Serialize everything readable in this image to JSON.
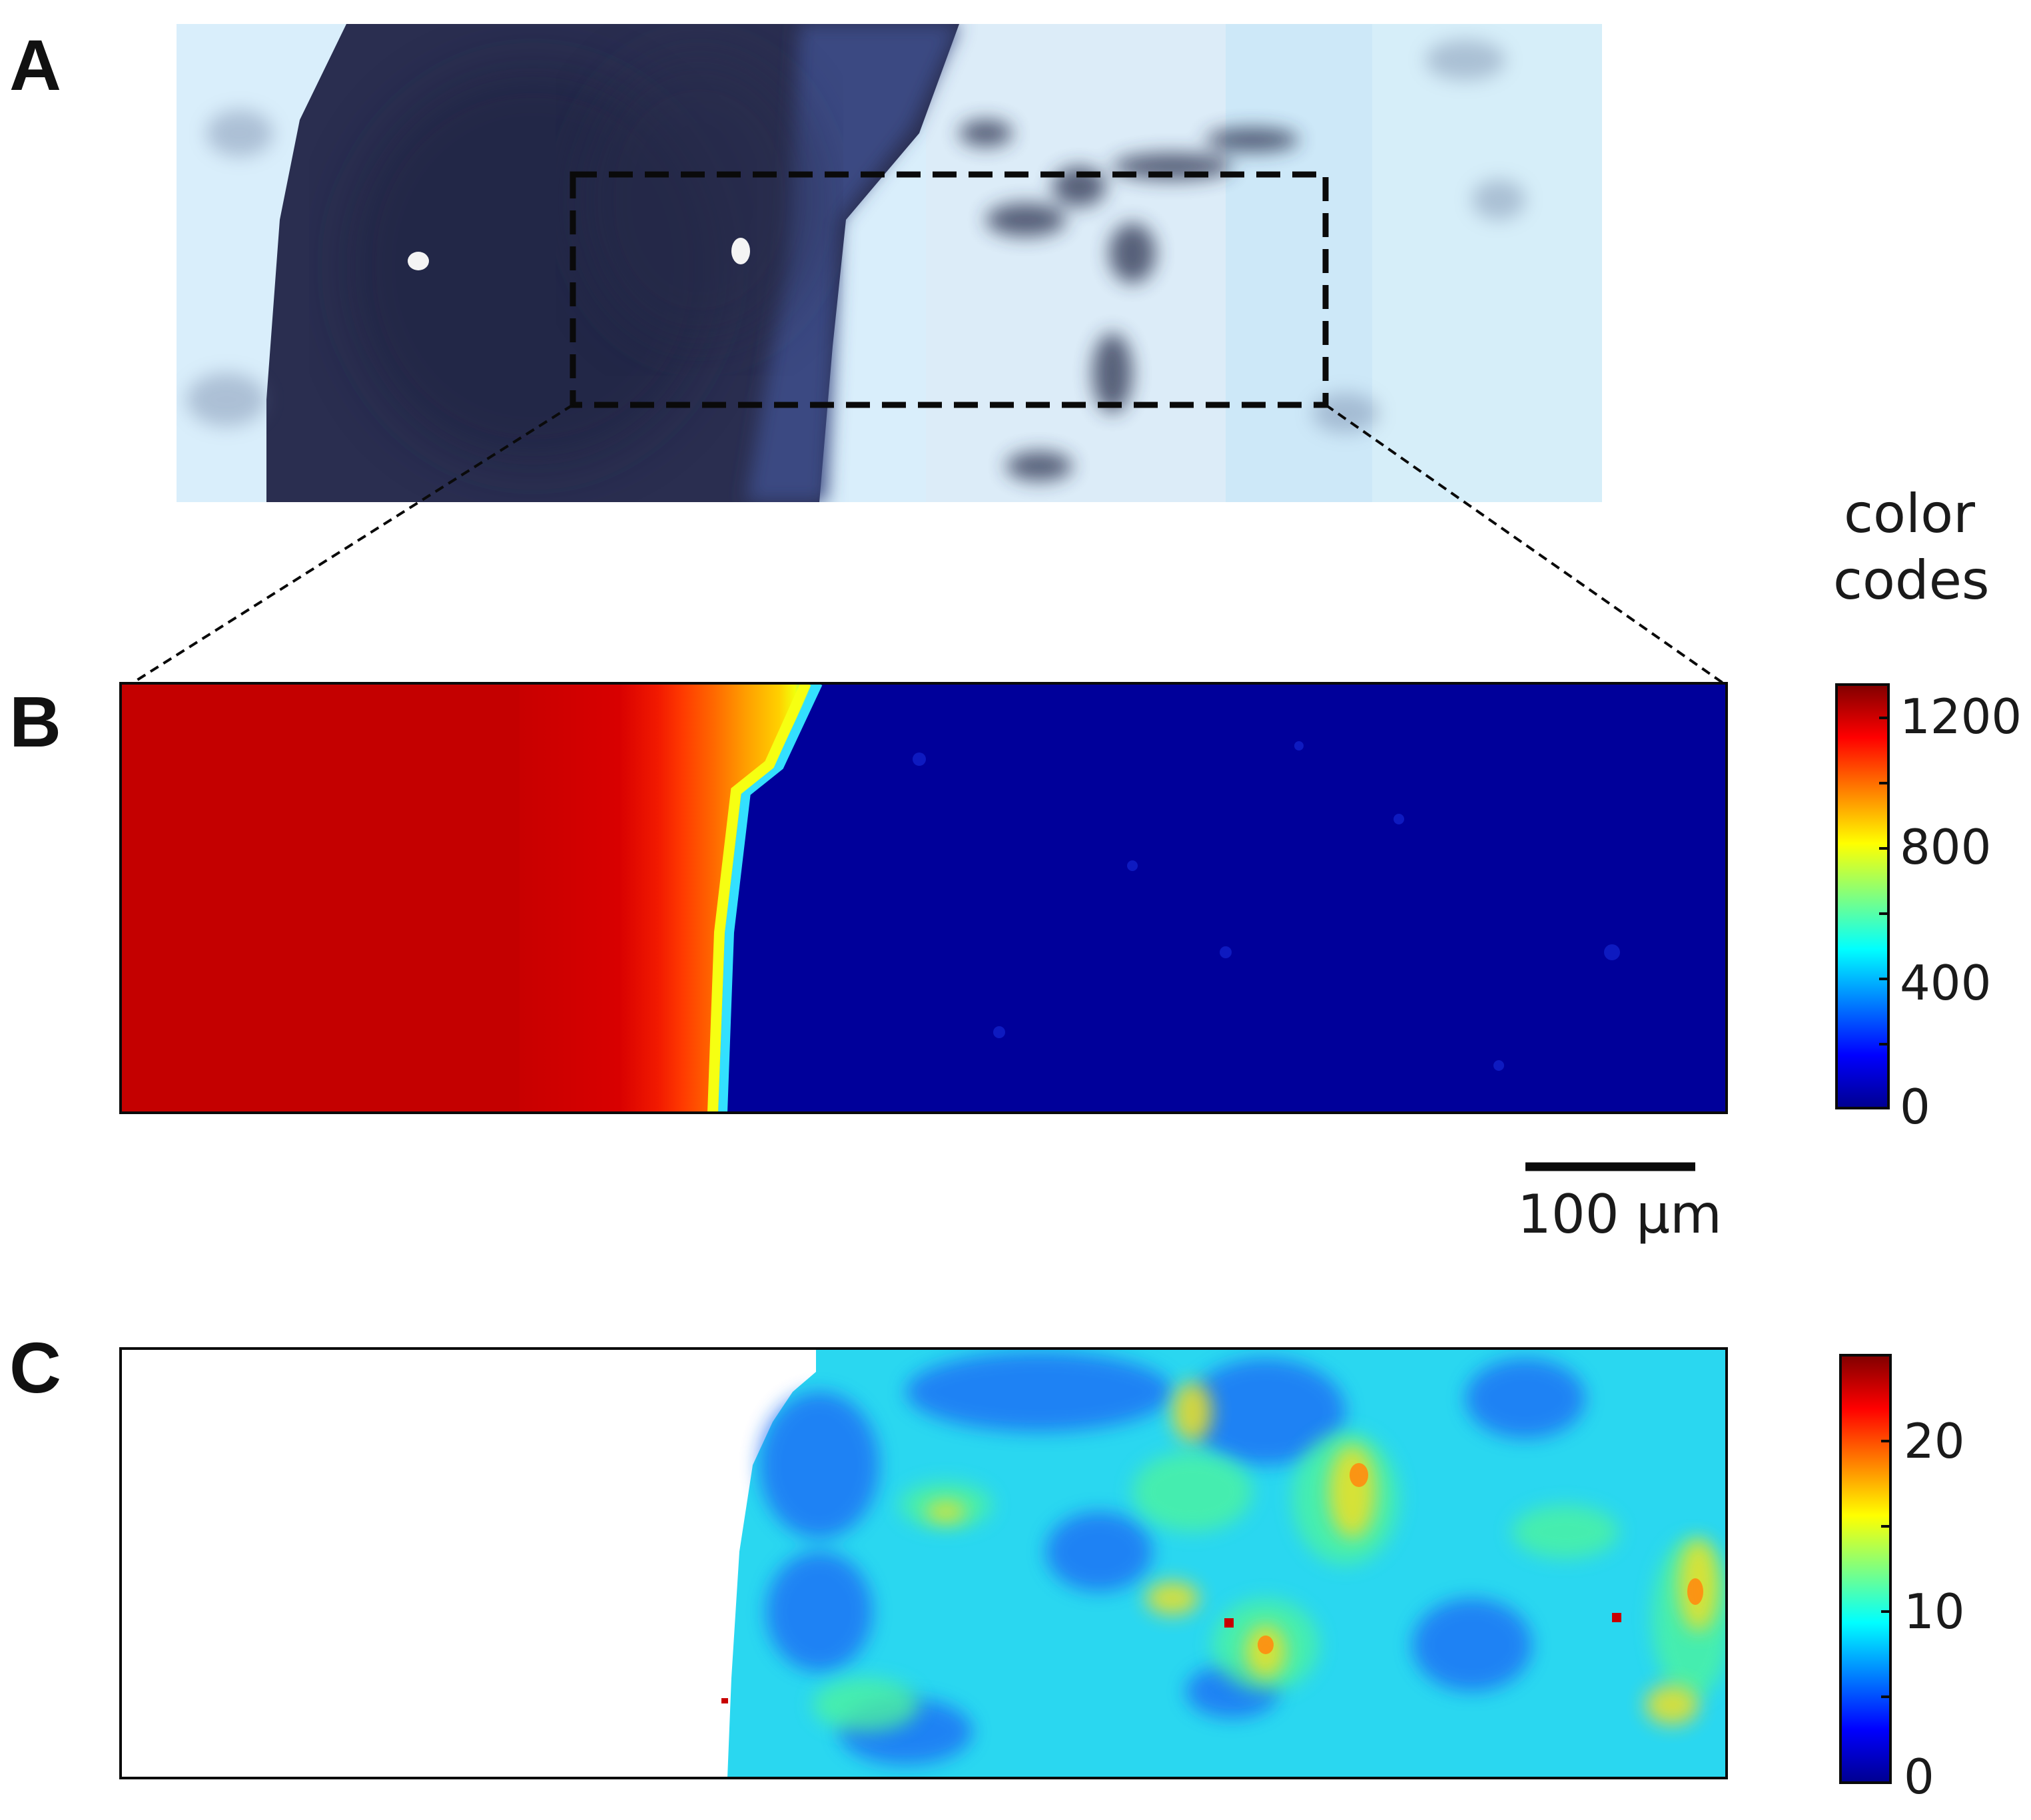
{
  "panels": {
    "a": {
      "letter": "A"
    },
    "b": {
      "letter": "B"
    },
    "c": {
      "letter": "C"
    }
  },
  "colorbar_b": {
    "title_line1": "color",
    "title_line2": "codes",
    "ticks": [
      "1200",
      "800",
      "400",
      "0"
    ],
    "range": [
      0,
      1300
    ]
  },
  "colorbar_c": {
    "ticks": [
      "20",
      "10",
      "0"
    ],
    "range": [
      0,
      25
    ]
  },
  "scalebar": {
    "label": "100 µm"
  },
  "colors": {
    "tissue_dark": "#2b2f52",
    "tissue_light": "#d8efff",
    "jet_high": "#a50000",
    "jet_low": "#00008f"
  }
}
